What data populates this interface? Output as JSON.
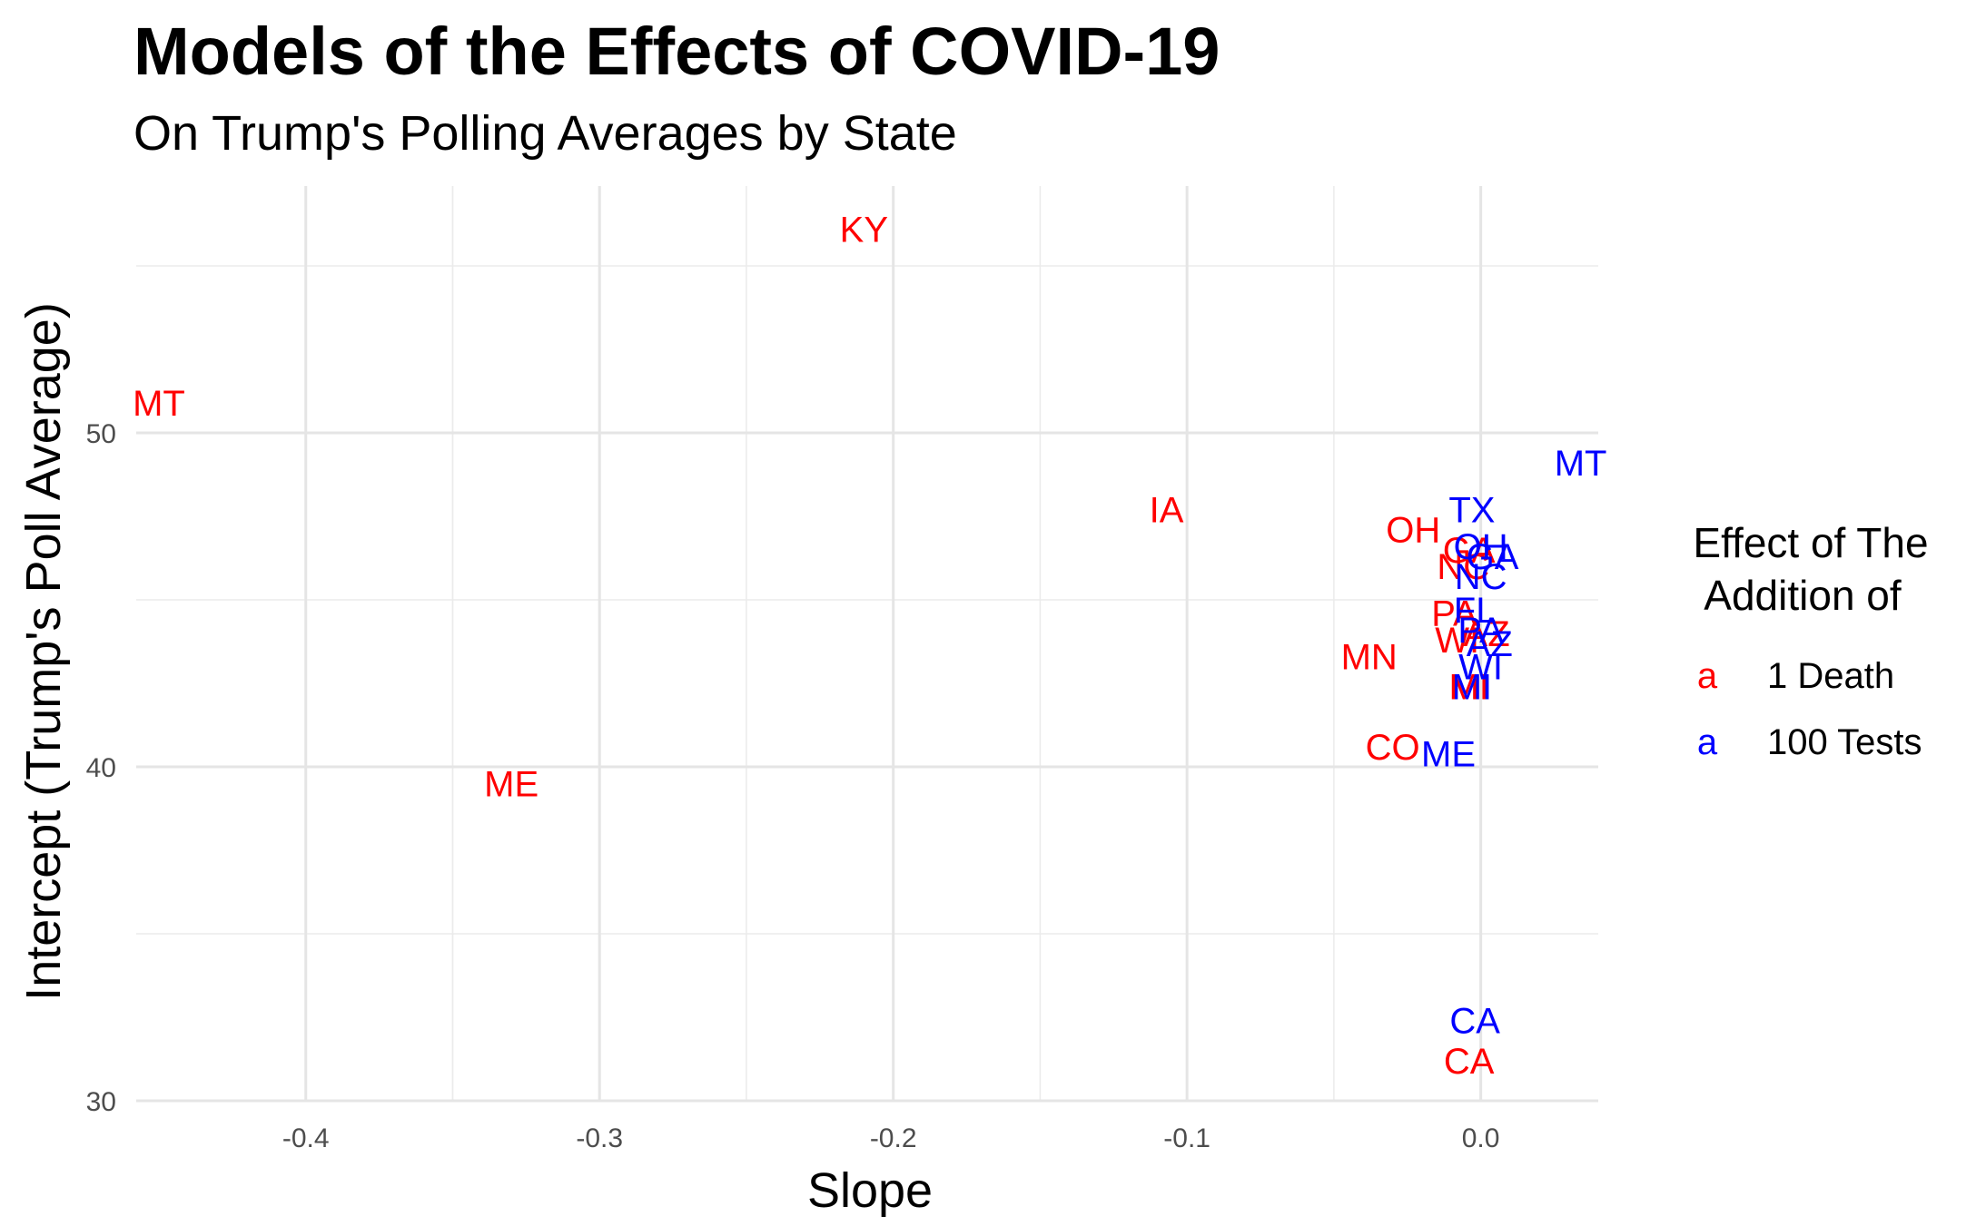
{
  "chart_data": {
    "type": "scatter",
    "title": "Models of the Effects of COVID-19",
    "subtitle": "On Trump's Polling Averages by State",
    "xlabel": "Slope",
    "ylabel": "Intercept (Trump's Poll Average)",
    "xlim": [
      -0.45,
      0.04
    ],
    "ylim": [
      30,
      55
    ],
    "x_ticks": [
      -0.4,
      -0.3,
      -0.2,
      -0.1,
      0.0
    ],
    "x_tick_labels": [
      "-0.4",
      "-0.3",
      "-0.2",
      "-0.1",
      "0.0"
    ],
    "y_ticks": [
      30,
      40,
      50
    ],
    "y_tick_labels": [
      "30",
      "40",
      "50"
    ],
    "grid": true,
    "legend": {
      "title_lines": [
        "Effect of The",
        "Addition of"
      ],
      "key_glyph": "a",
      "placement": "right",
      "entries": [
        {
          "label": "1 Death",
          "color": "#ff0000"
        },
        {
          "label": "100 Tests",
          "color": "#0000ff"
        }
      ]
    },
    "series": [
      {
        "name": "1 Death",
        "color": "#ff0000",
        "points": [
          {
            "label": "MT",
            "x": -0.45,
            "y": 50.9
          },
          {
            "label": "KY",
            "x": -0.21,
            "y": 56.1
          },
          {
            "label": "IA",
            "x": -0.107,
            "y": 47.7
          },
          {
            "label": "OH",
            "x": -0.023,
            "y": 47.1
          },
          {
            "label": "GA",
            "x": -0.004,
            "y": 46.5
          },
          {
            "label": "NC",
            "x": -0.006,
            "y": 46.0
          },
          {
            "label": "PA",
            "x": -0.009,
            "y": 44.6
          },
          {
            "label": "AZ",
            "x": 0.002,
            "y": 44.0
          },
          {
            "label": "WI",
            "x": -0.008,
            "y": 43.8
          },
          {
            "label": "MN",
            "x": -0.038,
            "y": 43.3
          },
          {
            "label": "MI",
            "x": -0.004,
            "y": 42.4
          },
          {
            "label": "CO",
            "x": -0.03,
            "y": 40.6
          },
          {
            "label": "ME",
            "x": -0.33,
            "y": 39.5
          },
          {
            "label": "CA",
            "x": -0.004,
            "y": 31.2
          }
        ]
      },
      {
        "name": "100 Tests",
        "color": "#0000ff",
        "points": [
          {
            "label": "MT",
            "x": 0.034,
            "y": 49.1
          },
          {
            "label": "TX",
            "x": -0.003,
            "y": 47.7
          },
          {
            "label": "OH",
            "x": 0.0,
            "y": 46.6
          },
          {
            "label": "GA",
            "x": 0.004,
            "y": 46.3
          },
          {
            "label": "NC",
            "x": 0.0,
            "y": 45.7
          },
          {
            "label": "FL",
            "x": -0.002,
            "y": 44.7
          },
          {
            "label": "PA",
            "x": 0.0,
            "y": 44.1
          },
          {
            "label": "AZ",
            "x": 0.003,
            "y": 43.7
          },
          {
            "label": "WI",
            "x": 0.0,
            "y": 43.0
          },
          {
            "label": "MI",
            "x": -0.003,
            "y": 42.4
          },
          {
            "label": "ME",
            "x": -0.011,
            "y": 40.4
          },
          {
            "label": "CA",
            "x": -0.002,
            "y": 32.4
          }
        ]
      }
    ]
  }
}
